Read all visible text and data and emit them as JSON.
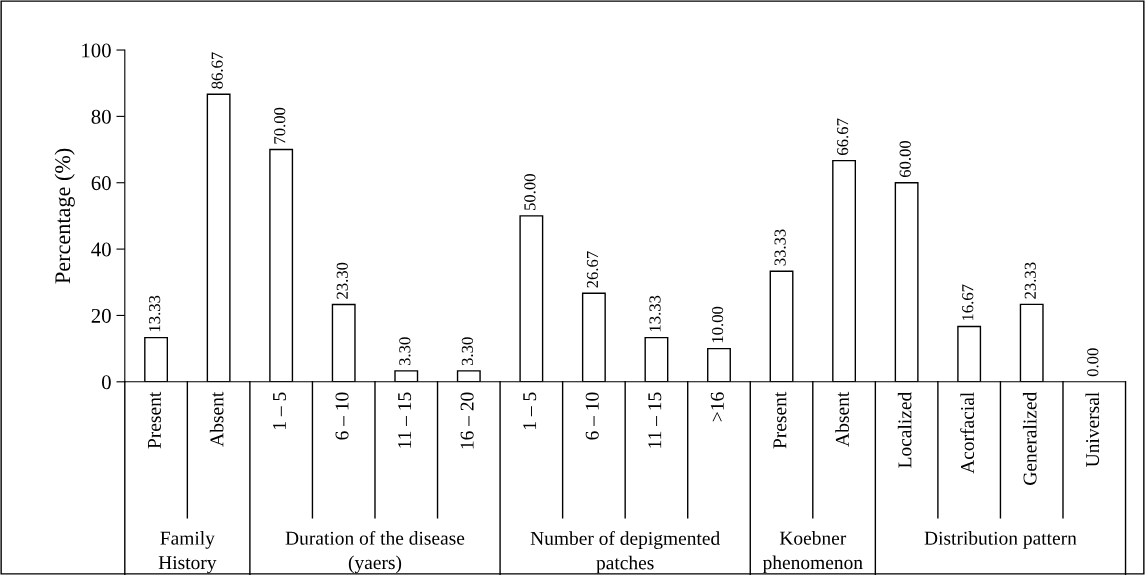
{
  "chart_data": {
    "type": "bar",
    "ylabel": "Percentage (%)",
    "categories": [
      "Present",
      "Absent",
      "1 – 5",
      "6 – 10",
      "11 – 15",
      "16 – 20",
      "1 – 5",
      "6 – 10",
      "11 – 15",
      ">16",
      "Present",
      "Absent",
      "Localized",
      "Acorfacial",
      "Generalized",
      "Universal"
    ],
    "values": [
      13.33,
      86.67,
      70.0,
      23.3,
      3.3,
      3.3,
      50.0,
      26.67,
      13.33,
      10.0,
      33.33,
      66.67,
      60.0,
      16.67,
      23.33,
      0.0
    ],
    "value_labels": [
      "13.33",
      "86.67",
      "70.00",
      "23.30",
      "3.30",
      "3.30",
      "50.00",
      "26.67",
      "13.33",
      "10.00",
      "33.33",
      "66.67",
      "60.00",
      "16.67",
      "23.33",
      "0.00"
    ],
    "color": "#ffffff",
    "ylim": [
      0,
      100
    ],
    "yticks": [
      0,
      20,
      40,
      60,
      80,
      100
    ],
    "grid": false,
    "legend": false,
    "annotations": [
      "Family\nHistory",
      "Duration of the disease\n(yaers)",
      "Number of depigmented\npatches",
      "Koebner\nphenomenon",
      "Distribution pattern"
    ]
  }
}
